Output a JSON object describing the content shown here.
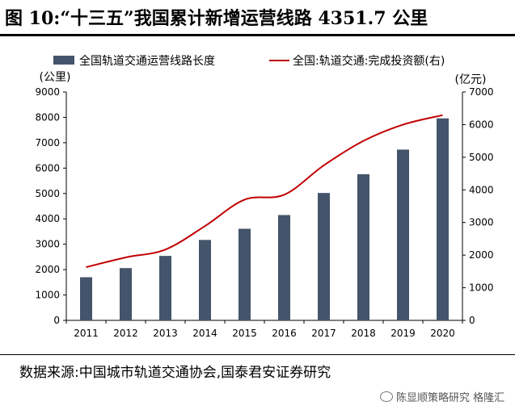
{
  "header": {
    "title": "图 10:“十三五”我国累计新增运营线路 4351.7 公里"
  },
  "footer": {
    "source": "数据来源:中国城市轨道交通协会,国泰君安证券研究"
  },
  "watermark": {
    "text": "陈显顺策略研究 格隆汇"
  },
  "chart_data": {
    "type": "bar",
    "categories": [
      "2011",
      "2012",
      "2013",
      "2014",
      "2015",
      "2016",
      "2017",
      "2018",
      "2019",
      "2020"
    ],
    "series": [
      {
        "name": "全国轨道交通运营线路长度",
        "type": "bar",
        "axis": "left",
        "color": "#44546a",
        "values": [
          1700,
          2060,
          2540,
          3170,
          3610,
          4150,
          5020,
          5760,
          6730,
          7960
        ]
      },
      {
        "name": "全国:轨道交通:完成投资额(右)",
        "type": "line",
        "axis": "right",
        "color": "#c00000",
        "values": [
          1630,
          1930,
          2170,
          2890,
          3700,
          3850,
          4750,
          5500,
          6000,
          6290
        ]
      }
    ],
    "y_left": {
      "unit": "(公里)",
      "min": 0,
      "max": 9000,
      "ticks": [
        "0",
        "1000",
        "2000",
        "3000",
        "4000",
        "5000",
        "6000",
        "7000",
        "8000",
        "9000"
      ]
    },
    "y_right": {
      "unit": "(亿元)",
      "min": 0,
      "max": 7000,
      "ticks": [
        "0",
        "1000",
        "2000",
        "3000",
        "4000",
        "5000",
        "6000",
        "7000"
      ]
    },
    "legend_position": "top",
    "grid": false
  }
}
